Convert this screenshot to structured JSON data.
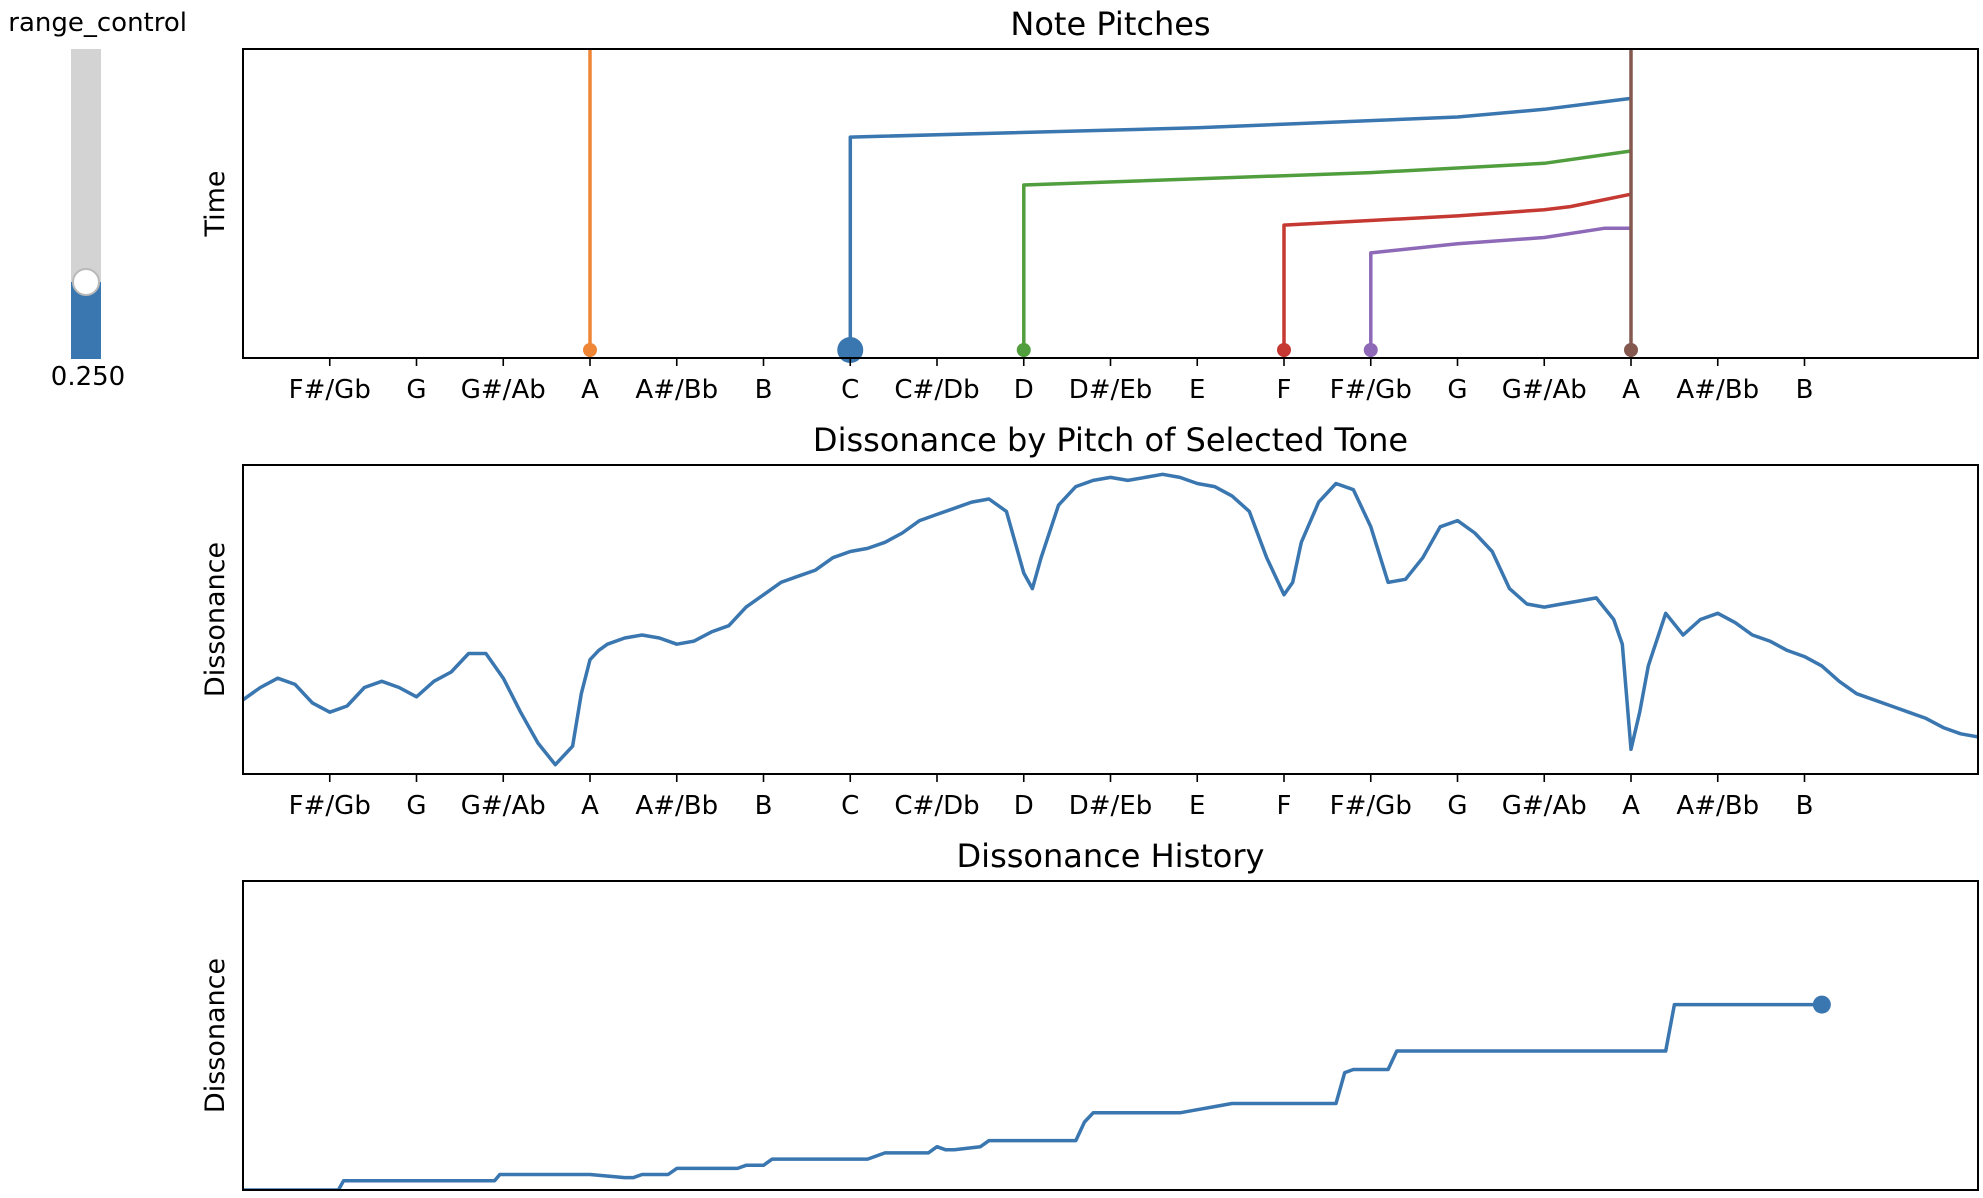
{
  "slider": {
    "label": "range_control",
    "value": 0.25,
    "value_text": "0.250",
    "track_color": "#d3d3d3",
    "fill_color": "#3a76af"
  },
  "chart_data": [
    {
      "type": "line",
      "title": "Note Pitches",
      "xlabel": "",
      "ylabel": "Time",
      "x_ticks": [
        "F#/Gb",
        "G",
        "G#/Ab",
        "A",
        "A#/Bb",
        "B",
        "C",
        "C#/Db",
        "D",
        "D#/Eb",
        "E",
        "F",
        "F#/Gb",
        "G",
        "G#/Ab",
        "A",
        "A#/Bb",
        "B"
      ],
      "xlim": [
        -1,
        19
      ],
      "ylim": [
        0,
        100
      ],
      "grid": false,
      "series": [
        {
          "color": "#ef8636",
          "x": [
            3,
            3
          ],
          "y": [
            0,
            100
          ]
        },
        {
          "color": "#3a76af",
          "selected": true,
          "x": [
            6,
            6,
            10,
            13,
            14,
            15
          ],
          "y": [
            0,
            71.5,
            74.5,
            78,
            80.5,
            84
          ]
        },
        {
          "color": "#519e3e",
          "x": [
            8,
            8,
            12,
            14,
            15
          ],
          "y": [
            0,
            56,
            60,
            63,
            67
          ]
        },
        {
          "color": "#c53932",
          "x": [
            11,
            11,
            13,
            14,
            14.3,
            15
          ],
          "y": [
            0,
            43,
            46,
            48,
            49,
            53
          ]
        },
        {
          "color": "#8d69b8",
          "x": [
            12,
            12,
            13,
            14,
            14.7,
            15
          ],
          "y": [
            0,
            34,
            37,
            39,
            42,
            42
          ]
        },
        {
          "color": "#84584e",
          "x": [
            15,
            15
          ],
          "y": [
            0,
            100
          ]
        }
      ]
    },
    {
      "type": "line",
      "title": "Dissonance by Pitch of Selected Tone",
      "xlabel": "",
      "ylabel": "Dissonance",
      "x_ticks": [
        "F#/Gb",
        "G",
        "G#/Ab",
        "A",
        "A#/Bb",
        "B",
        "C",
        "C#/Db",
        "D",
        "D#/Eb",
        "E",
        "F",
        "F#/Gb",
        "G",
        "G#/Ab",
        "A",
        "A#/Bb",
        "B"
      ],
      "xlim": [
        -1,
        19
      ],
      "ylim": [
        0,
        100
      ],
      "grid": false,
      "series": [
        {
          "color": "#3a76af",
          "x": [
            -1,
            -0.8,
            -0.6,
            -0.4,
            -0.2,
            0,
            0.2,
            0.4,
            0.6,
            0.8,
            1,
            1.2,
            1.4,
            1.6,
            1.8,
            2,
            2.2,
            2.4,
            2.6,
            2.8,
            2.9,
            3,
            3.1,
            3.2,
            3.4,
            3.6,
            3.8,
            4,
            4.2,
            4.4,
            4.6,
            4.8,
            5,
            5.2,
            5.4,
            5.6,
            5.8,
            6,
            6.2,
            6.4,
            6.6,
            6.8,
            7,
            7.2,
            7.4,
            7.6,
            7.8,
            8,
            8.1,
            8.2,
            8.4,
            8.6,
            8.8,
            9,
            9.2,
            9.4,
            9.6,
            9.8,
            10,
            10.2,
            10.4,
            10.6,
            10.8,
            11,
            11.1,
            11.2,
            11.4,
            11.6,
            11.8,
            12,
            12.2,
            12.4,
            12.6,
            12.8,
            13,
            13.2,
            13.4,
            13.6,
            13.8,
            14,
            14.2,
            14.4,
            14.6,
            14.8,
            14.9,
            15,
            15.1,
            15.2,
            15.4,
            15.6,
            15.8,
            16,
            16.2,
            16.4,
            16.6,
            16.8,
            17,
            17.2,
            17.4,
            17.6,
            17.8,
            18,
            18.2,
            18.4,
            18.6,
            18.8,
            19
          ],
          "y": [
            24,
            28,
            31,
            29,
            23,
            20,
            22,
            28,
            30,
            28,
            25,
            30,
            33,
            39,
            39,
            31,
            20,
            10,
            3,
            9,
            26,
            37,
            40,
            42,
            44,
            45,
            44,
            42,
            43,
            46,
            48,
            54,
            58,
            62,
            64,
            66,
            70,
            72,
            73,
            75,
            78,
            82,
            84,
            86,
            88,
            89,
            85,
            65,
            60,
            70,
            87,
            93,
            95,
            96,
            95,
            96,
            97,
            96,
            94,
            93,
            90,
            85,
            70,
            58,
            62,
            75,
            88,
            94,
            92,
            80,
            62,
            63,
            70,
            80,
            82,
            78,
            72,
            60,
            55,
            54,
            55,
            56,
            57,
            50,
            42,
            8,
            20,
            35,
            52,
            45,
            50,
            52,
            49,
            45,
            43,
            40,
            38,
            35,
            30,
            26,
            24,
            22,
            20,
            18,
            15,
            13,
            12
          ]
        }
      ]
    },
    {
      "type": "line",
      "title": "Dissonance History",
      "xlabel": "",
      "ylabel": "Dissonance",
      "xlim": [
        0,
        100
      ],
      "ylim": [
        0,
        100
      ],
      "grid": false,
      "series": [
        {
          "color": "#3a76af",
          "marker_at_end": true,
          "x": [
            0,
            5.5,
            5.8,
            14.5,
            14.8,
            20,
            22,
            22.5,
            23,
            24.5,
            25,
            28.5,
            29,
            30,
            30.5,
            36,
            37,
            39.5,
            40,
            40.5,
            41,
            42.5,
            43,
            48,
            48.5,
            49,
            54,
            55,
            56,
            57,
            63,
            63.5,
            64,
            66,
            66.5,
            71,
            71.5,
            78,
            82,
            82.5,
            91
          ],
          "y": [
            0,
            0,
            3,
            3,
            5,
            5,
            4,
            4,
            5,
            5,
            7,
            7,
            8,
            8,
            10,
            10,
            12,
            12,
            14,
            13,
            13,
            14,
            16,
            16,
            22,
            25,
            25,
            26,
            27,
            28,
            28,
            38,
            39,
            39,
            45,
            45,
            45,
            45,
            45,
            60,
            60
          ]
        }
      ]
    }
  ]
}
